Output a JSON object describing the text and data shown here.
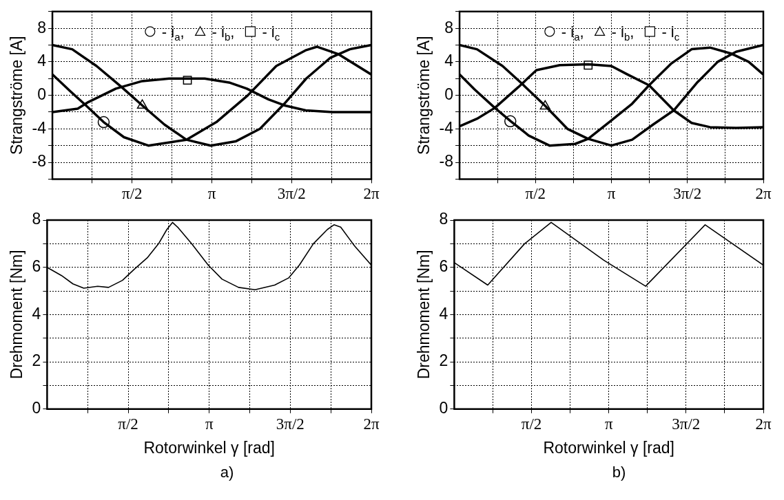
{
  "chart_data": [
    {
      "type": "line",
      "ylabel": "Strangströme [A]",
      "xlim": [
        0,
        6.2832
      ],
      "xticks": [
        {
          "value": 0.7854,
          "label": null
        },
        {
          "value": 1.5708,
          "label": "π/2"
        },
        {
          "value": 2.3562,
          "label": null
        },
        {
          "value": 3.1416,
          "label": "π"
        },
        {
          "value": 3.927,
          "label": null
        },
        {
          "value": 4.7124,
          "label": "3π/2"
        },
        {
          "value": 5.4978,
          "label": null
        },
        {
          "value": 6.2832,
          "label": "2π"
        }
      ],
      "ylim": [
        -10,
        10
      ],
      "yticks": [
        {
          "value": -10,
          "label": null
        },
        -8,
        {
          "value": -6,
          "label": null
        },
        -4,
        {
          "value": -2,
          "label": null
        },
        0,
        {
          "value": 2,
          "label": null
        },
        4,
        {
          "value": 6,
          "label": null
        },
        8,
        {
          "value": 10,
          "label": null
        }
      ],
      "grid": true,
      "legend": "top",
      "series": [
        {
          "color": "#000000",
          "x": [
            0,
            0.35,
            0.66,
            1.01,
            1.41,
            1.89,
            2.64,
            3.23,
            3.85,
            4.41,
            5.0,
            5.21,
            5.64,
            6.28
          ],
          "values": [
            2.5,
            0.5,
            -1.2,
            -3.2,
            -5,
            -6,
            -5.3,
            -3.2,
            0,
            3.5,
            5.4,
            5.8,
            4.9,
            2.5
          ]
        },
        {
          "color": "#000000",
          "x": [
            0,
            0.39,
            0.87,
            1.36,
            1.77,
            2.21,
            2.64,
            3.12,
            3.61,
            4.09,
            4.57,
            5.0,
            5.48,
            5.86,
            6.28
          ],
          "values": [
            6,
            5.5,
            3.5,
            1,
            -1.2,
            -3.5,
            -5.3,
            -6,
            -5.5,
            -4,
            -1,
            2,
            4.5,
            5.5,
            6
          ]
        },
        {
          "color": "#000000",
          "x": [
            0,
            0.5,
            0.71,
            1.25,
            1.77,
            2.3,
            3.0,
            3.5,
            3.83,
            4.26,
            4.57,
            4.99,
            5.52,
            6.28
          ],
          "values": [
            -2,
            -1.6,
            -0.8,
            0.8,
            1.7,
            2,
            2,
            1.5,
            0.8,
            -0.5,
            -1.2,
            -1.8,
            -2,
            -2
          ]
        },
        {
          "type": "scatter",
          "name": "- i$_{a}$,",
          "marker": "circle",
          "color": "#000000",
          "x": [
            1.01
          ],
          "values": [
            -3.2
          ]
        },
        {
          "type": "scatter",
          "name": "- i$_{b}$,",
          "marker": "triangle",
          "color": "#000000",
          "x": [
            1.77
          ],
          "values": [
            -1.2
          ]
        },
        {
          "type": "scatter",
          "name": "- i$_{c}$",
          "marker": "square",
          "color": "#000000",
          "x": [
            2.66
          ],
          "values": [
            1.8
          ]
        }
      ]
    },
    {
      "type": "line",
      "ylabel": "Strangströme [A]",
      "xlim": [
        0,
        6.2832
      ],
      "xticks": [
        {
          "value": 0.7854,
          "label": null
        },
        {
          "value": 1.5708,
          "label": "π/2"
        },
        {
          "value": 2.3562,
          "label": null
        },
        {
          "value": 3.1416,
          "label": "π"
        },
        {
          "value": 3.927,
          "label": null
        },
        {
          "value": 4.7124,
          "label": "3π/2"
        },
        {
          "value": 5.4978,
          "label": null
        },
        {
          "value": 6.2832,
          "label": "2π"
        }
      ],
      "ylim": [
        -10,
        10
      ],
      "yticks": [
        {
          "value": -10,
          "label": null
        },
        -8,
        {
          "value": -6,
          "label": null
        },
        -4,
        {
          "value": -2,
          "label": null
        },
        0,
        {
          "value": 2,
          "label": null
        },
        4,
        {
          "value": 6,
          "label": null
        },
        8,
        {
          "value": 10,
          "label": null
        }
      ],
      "grid": true,
      "legend": "top",
      "series": [
        {
          "color": "#000000",
          "x": [
            0,
            0.31,
            0.73,
            1.06,
            1.43,
            1.86,
            2.39,
            2.66,
            3.14,
            3.57,
            3.92,
            4.38,
            4.8,
            5.18,
            5.61,
            5.98,
            6.28
          ],
          "values": [
            2.5,
            0.7,
            -1.5,
            -3.1,
            -4.8,
            -6,
            -5.8,
            -5.2,
            -3,
            -1,
            1.2,
            3.8,
            5.5,
            5.7,
            5,
            4,
            2.5
          ]
        },
        {
          "color": "#000000",
          "x": [
            0,
            0.36,
            0.89,
            1.27,
            1.78,
            2.23,
            2.66,
            3.14,
            3.57,
            4.0,
            4.43,
            4.91,
            5.34,
            5.72,
            6.28
          ],
          "values": [
            6,
            5.5,
            3.5,
            1.5,
            -1.3,
            -4,
            -5.2,
            -6,
            -5.3,
            -3.5,
            -1.8,
            1.5,
            4,
            5.2,
            6
          ]
        },
        {
          "color": "#000000",
          "x": [
            0,
            0.36,
            0.73,
            1.22,
            1.59,
            2.07,
            2.66,
            3.14,
            3.47,
            3.92,
            4.43,
            4.8,
            5.18,
            5.72,
            6.28
          ],
          "values": [
            -3.7,
            -2.8,
            -1.5,
            1,
            3,
            3.6,
            3.7,
            3.5,
            2.5,
            1.2,
            -1.8,
            -3.3,
            -3.8,
            -3.9,
            -3.8
          ]
        },
        {
          "type": "scatter",
          "name": "- i$_{a}$,",
          "marker": "circle",
          "color": "#000000",
          "x": [
            1.05
          ],
          "values": [
            -3.1
          ]
        },
        {
          "type": "scatter",
          "name": "- i$_{b}$,",
          "marker": "triangle",
          "color": "#000000",
          "x": [
            1.77
          ],
          "values": [
            -1.3
          ]
        },
        {
          "type": "scatter",
          "name": "- i$_{c}$",
          "marker": "square",
          "color": "#000000",
          "x": [
            2.66
          ],
          "values": [
            3.6
          ]
        }
      ]
    },
    {
      "type": "line",
      "ylabel": "Drehmoment [Nm]",
      "xlabel": "Rotorwinkel γ [rad]",
      "annotations": [
        "a)"
      ],
      "xlim": [
        0,
        6.2832
      ],
      "xticks": [
        {
          "value": 0.7854,
          "label": null
        },
        {
          "value": 1.5708,
          "label": "π/2"
        },
        {
          "value": 2.3562,
          "label": null
        },
        {
          "value": 3.1416,
          "label": "π"
        },
        {
          "value": 3.927,
          "label": null
        },
        {
          "value": 4.7124,
          "label": "3π/2"
        },
        {
          "value": 5.4978,
          "label": null
        },
        {
          "value": 6.2832,
          "label": "2π"
        }
      ],
      "ylim": [
        0,
        8
      ],
      "yticks": [
        0,
        {
          "value": 1,
          "label": null
        },
        2,
        {
          "value": 3,
          "label": null
        },
        4,
        {
          "value": 5,
          "label": null
        },
        6,
        {
          "value": 7,
          "label": null
        },
        8
      ],
      "grid": true,
      "series": [
        {
          "color": "#000000",
          "x": [
            0,
            0.28,
            0.5,
            0.71,
            0.98,
            1.19,
            1.46,
            1.68,
            1.94,
            2.16,
            2.32,
            2.43,
            2.53,
            2.8,
            3.12,
            3.39,
            3.71,
            4.03,
            4.41,
            4.68,
            4.89,
            5.16,
            5.43,
            5.56,
            5.69,
            5.96,
            6.28
          ],
          "values": [
            6.0,
            5.65,
            5.3,
            5.12,
            5.2,
            5.15,
            5.45,
            5.9,
            6.4,
            7.0,
            7.6,
            7.9,
            7.7,
            7.0,
            6.1,
            5.5,
            5.15,
            5.05,
            5.25,
            5.55,
            6.1,
            7.0,
            7.6,
            7.8,
            7.7,
            6.9,
            6.1
          ]
        }
      ]
    },
    {
      "type": "line",
      "ylabel": "Drehmoment [Nm]",
      "xlabel": "Rotorwinkel γ [rad]",
      "annotations": [
        "b)"
      ],
      "xlim": [
        0,
        6.2832
      ],
      "xticks": [
        {
          "value": 0.7854,
          "label": null
        },
        {
          "value": 1.5708,
          "label": "π/2"
        },
        {
          "value": 2.3562,
          "label": null
        },
        {
          "value": 3.1416,
          "label": "π"
        },
        {
          "value": 3.927,
          "label": null
        },
        {
          "value": 4.7124,
          "label": "3π/2"
        },
        {
          "value": 5.4978,
          "label": null
        },
        {
          "value": 6.2832,
          "label": "2π"
        }
      ],
      "ylim": [
        0,
        8
      ],
      "yticks": [
        0,
        {
          "value": 1,
          "label": null
        },
        2,
        {
          "value": 3,
          "label": null
        },
        4,
        {
          "value": 5,
          "label": null
        },
        6,
        {
          "value": 7,
          "label": null
        },
        8
      ],
      "grid": true,
      "series": [
        {
          "color": "#000000",
          "x": [
            0,
            0.68,
            1.43,
            1.97,
            3.04,
            3.89,
            5.1,
            6.28
          ],
          "values": [
            6.2,
            5.25,
            7.0,
            7.9,
            6.3,
            5.2,
            7.8,
            6.1
          ]
        }
      ]
    }
  ]
}
